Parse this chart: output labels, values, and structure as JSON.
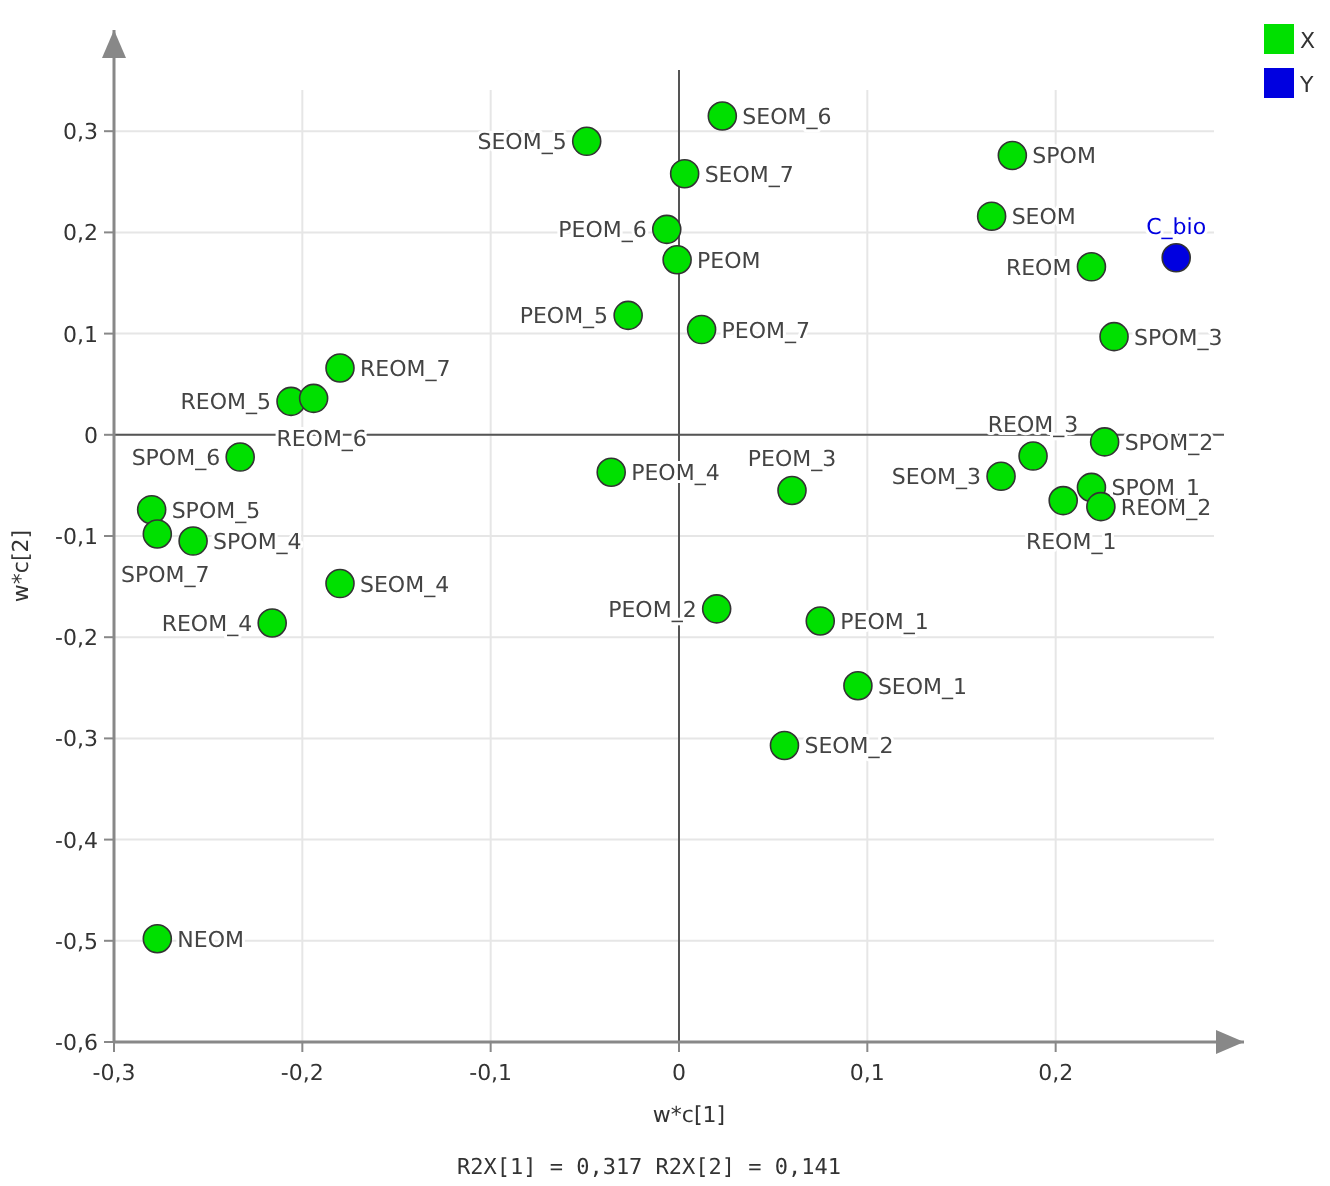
{
  "chart_data": {
    "type": "scatter",
    "xlabel": "w*c[1]",
    "ylabel": "w*c[2]",
    "xlim": [
      -0.3,
      0.3
    ],
    "ylim": [
      -0.6,
      0.4
    ],
    "xticks": [
      {
        "value": -0.3,
        "label": "-0,3"
      },
      {
        "value": -0.2,
        "label": "-0,2"
      },
      {
        "value": -0.1,
        "label": "-0,1"
      },
      0,
      {
        "value": 0.1,
        "label": "0,1"
      },
      {
        "value": 0.2,
        "label": "0,2"
      }
    ],
    "yticks": [
      {
        "value": -0.6,
        "label": "-0,6"
      },
      {
        "value": -0.5,
        "label": "-0,5"
      },
      {
        "value": -0.4,
        "label": "-0,4"
      },
      {
        "value": -0.3,
        "label": "-0,3"
      },
      {
        "value": -0.2,
        "label": "-0,2"
      },
      {
        "value": -0.1,
        "label": "-0,1"
      },
      0,
      {
        "value": 0.1,
        "label": "0,1"
      },
      {
        "value": 0.2,
        "label": "0,2"
      },
      {
        "value": 0.3,
        "label": "0,3"
      }
    ],
    "grid": true,
    "legend": "top right",
    "marker": "circle",
    "series": [
      {
        "name": "X",
        "color": "#00e000",
        "x": [
          -0.049,
          -0.0065,
          -0.001,
          -0.027,
          -0.18,
          -0.206,
          -0.194,
          -0.233,
          -0.28,
          -0.277,
          -0.258,
          -0.18,
          -0.036,
          0.023,
          0.003,
          0.177,
          0.166,
          0.219,
          0.012,
          0.231,
          0.226,
          0.188,
          0.171,
          0.06,
          0.219,
          0.204,
          0.224,
          -0.216,
          0.02,
          0.075,
          0.095,
          0.056,
          -0.277
        ],
        "values": [
          0.29,
          0.203,
          0.173,
          0.118,
          0.066,
          0.033,
          0.036,
          -0.022,
          -0.074,
          -0.098,
          -0.105,
          -0.147,
          -0.037,
          0.315,
          0.258,
          0.276,
          0.216,
          0.166,
          0.104,
          0.097,
          -0.007,
          -0.021,
          -0.041,
          -0.055,
          -0.052,
          -0.065,
          -0.071,
          -0.186,
          -0.172,
          -0.184,
          -0.248,
          -0.307,
          -0.498
        ]
      },
      {
        "name": "Y",
        "color": "#0000e0",
        "x": [
          0.264
        ],
        "values": [
          0.175
        ]
      }
    ],
    "annotations": [
      {
        "text": "SEOM_5",
        "x": -0.049,
        "y": 0.29
      },
      {
        "text": "PEOM_6",
        "x": -0.0065,
        "y": 0.203
      },
      {
        "text": "PEOM",
        "x": -0.001,
        "y": 0.173
      },
      {
        "text": "PEOM_5",
        "x": -0.027,
        "y": 0.118
      },
      {
        "text": "REOM_7",
        "x": -0.18,
        "y": 0.066
      },
      {
        "text": "REOM_5",
        "x": -0.206,
        "y": 0.033
      },
      {
        "text": "REOM_6",
        "x": -0.194,
        "y": 0.036
      },
      {
        "text": "SPOM_6",
        "x": -0.233,
        "y": -0.022
      },
      {
        "text": "SPOM_5",
        "x": -0.28,
        "y": -0.074
      },
      {
        "text": "SPOM_7",
        "x": -0.277,
        "y": -0.098
      },
      {
        "text": "SPOM_4",
        "x": -0.258,
        "y": -0.105
      },
      {
        "text": "SEOM_4",
        "x": -0.18,
        "y": -0.147
      },
      {
        "text": "PEOM_4",
        "x": -0.036,
        "y": -0.037
      },
      {
        "text": "SEOM_6",
        "x": 0.023,
        "y": 0.315
      },
      {
        "text": "SEOM_7",
        "x": 0.003,
        "y": 0.258
      },
      {
        "text": "SPOM",
        "x": 0.177,
        "y": 0.276
      },
      {
        "text": "SEOM",
        "x": 0.166,
        "y": 0.216
      },
      {
        "text": "REOM",
        "x": 0.219,
        "y": 0.166
      },
      {
        "text": "PEOM_7",
        "x": 0.012,
        "y": 0.104
      },
      {
        "text": "SPOM_3",
        "x": 0.231,
        "y": 0.097
      },
      {
        "text": "SPOM_2",
        "x": 0.226,
        "y": -0.007
      },
      {
        "text": "REOM_3",
        "x": 0.188,
        "y": -0.021
      },
      {
        "text": "SEOM_3",
        "x": 0.171,
        "y": -0.041
      },
      {
        "text": "PEOM_3",
        "x": 0.06,
        "y": -0.055
      },
      {
        "text": "SPOM_1",
        "x": 0.219,
        "y": -0.052
      },
      {
        "text": "REOM_1",
        "x": 0.204,
        "y": -0.065
      },
      {
        "text": "REOM_2",
        "x": 0.224,
        "y": -0.071
      },
      {
        "text": "REOM_4",
        "x": -0.216,
        "y": -0.186
      },
      {
        "text": "PEOM_2",
        "x": 0.02,
        "y": -0.172
      },
      {
        "text": "PEOM_1",
        "x": 0.075,
        "y": -0.184
      },
      {
        "text": "SEOM_1",
        "x": 0.095,
        "y": -0.248
      },
      {
        "text": "SEOM_2",
        "x": 0.056,
        "y": -0.307
      },
      {
        "text": "NEOM",
        "x": -0.277,
        "y": -0.498
      },
      {
        "text": "C_bio",
        "x": 0.264,
        "y": 0.175
      },
      "R2X[1] = 0,317 R2X[2] = 0,141"
    ]
  }
}
